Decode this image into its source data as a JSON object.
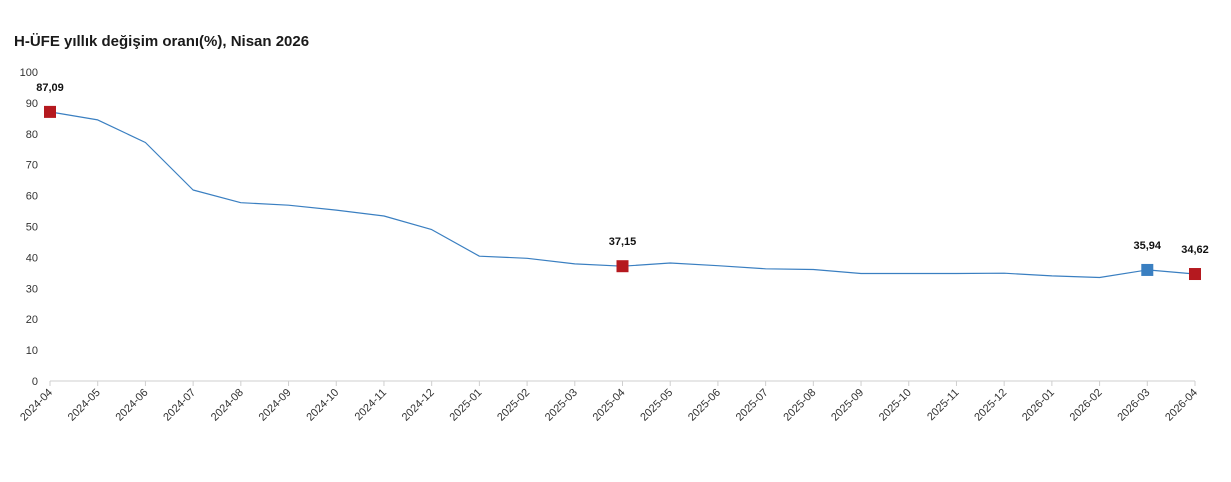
{
  "chart_data": {
    "type": "line",
    "title": "H-ÜFE yıllık değişim oranı(%), Nisan 2026",
    "xlabel": "",
    "ylabel": "",
    "ylim": [
      0,
      100
    ],
    "yticks": [
      "0",
      "10",
      "20",
      "30",
      "40",
      "50",
      "60",
      "70",
      "80",
      "90",
      "100"
    ],
    "grid": false,
    "categories": [
      "2024-04",
      "2024-05",
      "2024-06",
      "2024-07",
      "2024-08",
      "2024-09",
      "2024-10",
      "2024-11",
      "2024-12",
      "2025-01",
      "2025-02",
      "2025-03",
      "2025-04",
      "2025-05",
      "2025-06",
      "2025-07",
      "2025-08",
      "2025-09",
      "2025-10",
      "2025-11",
      "2025-12",
      "2026-01",
      "2026-02",
      "2026-03",
      "2026-04"
    ],
    "series": [
      {
        "values": [
          87.09,
          84.5,
          77.2,
          61.8,
          57.7,
          56.9,
          55.3,
          53.4,
          49.0,
          40.4,
          39.7,
          37.9,
          37.15,
          38.2,
          37.3,
          36.3,
          36.1,
          34.8,
          34.8,
          34.8,
          34.9,
          34.0,
          33.5,
          35.94,
          34.62
        ],
        "color": "#3a7fc1"
      }
    ],
    "highlighted_points": [
      {
        "index": 0,
        "label": "87,09",
        "color": "#b5191f"
      },
      {
        "index": 12,
        "label": "37,15",
        "color": "#b5191f"
      },
      {
        "index": 23,
        "label": "35,94",
        "color": "#3a7fc1"
      },
      {
        "index": 24,
        "label": "34,62",
        "color": "#b5191f"
      }
    ]
  }
}
